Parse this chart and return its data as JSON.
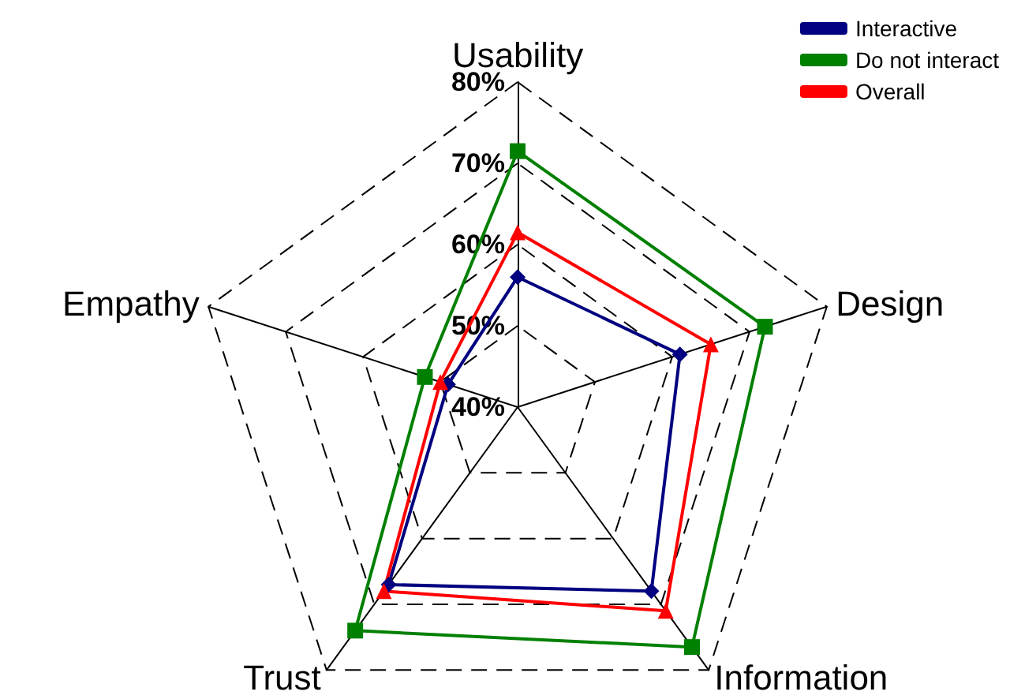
{
  "chart_data": {
    "type": "radar",
    "categories": [
      "Usability",
      "Design",
      "Information",
      "Trust",
      "Empathy"
    ],
    "series": [
      {
        "name": "Interactive",
        "color": "#000080",
        "marker": "diamond",
        "values": [
          56,
          61,
          68,
          67,
          49
        ]
      },
      {
        "name": "Do not interact",
        "color": "#008000",
        "marker": "square",
        "values": [
          71.5,
          72,
          76.5,
          74,
          52
        ]
      },
      {
        "name": "Overall",
        "color": "#ff0000",
        "marker": "triangle",
        "values": [
          61.5,
          65,
          71,
          68,
          50
        ]
      }
    ],
    "ylim": [
      40,
      80
    ],
    "yticks": [
      {
        "value": 40,
        "label": "40%"
      },
      {
        "value": 50,
        "label": "50%"
      },
      {
        "value": 60,
        "label": "60%"
      },
      {
        "value": 70,
        "label": "70%"
      },
      {
        "value": 80,
        "label": "80%"
      }
    ],
    "grid": true,
    "legend": "top right",
    "line_style": "solid"
  }
}
